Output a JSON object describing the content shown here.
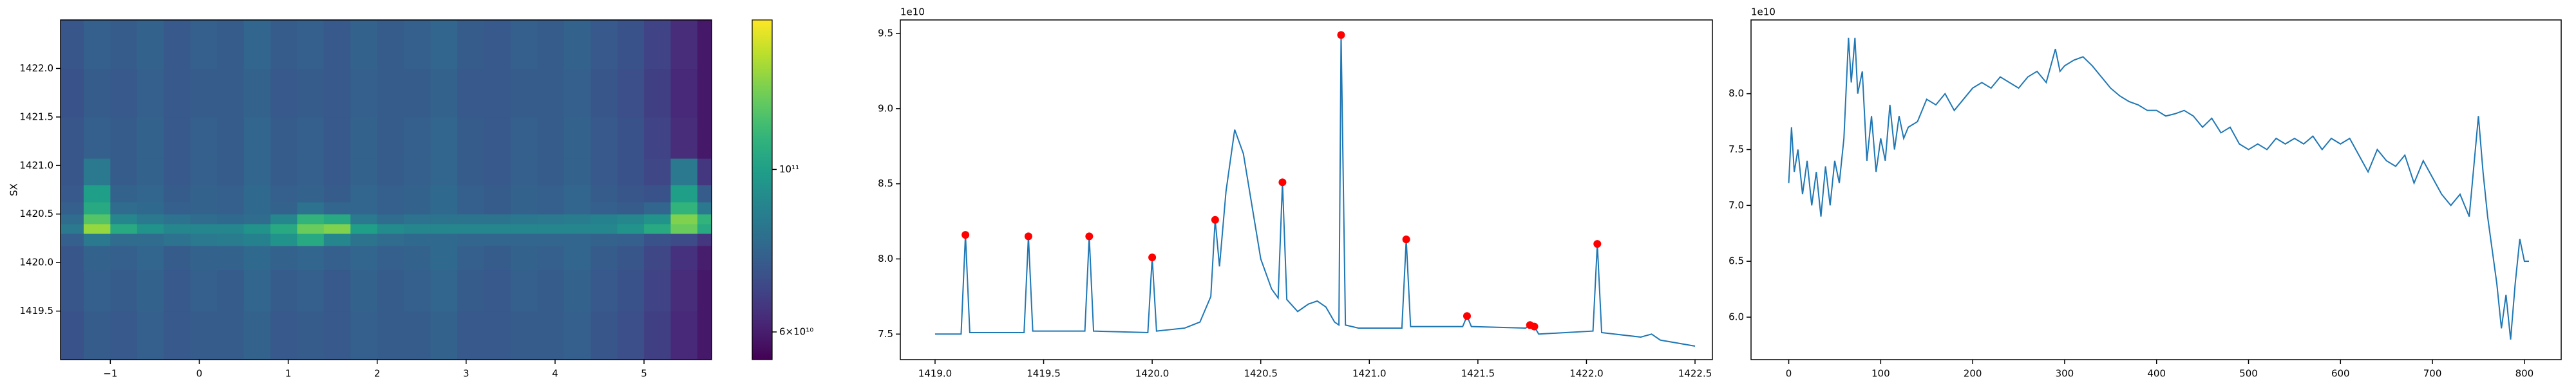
{
  "chart_data": [
    {
      "type": "heatmap",
      "x": [
        -1.45,
        -1.15,
        -0.85,
        -0.55,
        -0.25,
        0.05,
        0.35,
        0.65,
        0.95,
        1.25,
        1.55,
        1.85,
        2.15,
        2.45,
        2.75,
        3.05,
        3.35,
        3.65,
        3.95,
        4.25,
        4.55,
        4.85,
        5.15,
        5.45,
        5.75
      ],
      "y": [
        1419.25,
        1419.75,
        1420.1,
        1420.25,
        1420.35,
        1420.45,
        1420.55,
        1420.7,
        1420.9,
        1421.25,
        1421.75,
        1422.25
      ],
      "z": [
        [
          72000000000.0,
          75000000000.0,
          74000000000.0,
          76000000000.0,
          74000000000.0,
          75000000000.0,
          75000000000.0,
          77000000000.0,
          74000000000.0,
          75000000000.0,
          74000000000.0,
          76000000000.0,
          75000000000.0,
          75000000000.0,
          77000000000.0,
          74000000000.0,
          74000000000.0,
          75000000000.0,
          75000000000.0,
          76000000000.0,
          73000000000.0,
          71000000000.0,
          67000000000.0,
          62000000000.0,
          59000000000.0
        ],
        [
          73000000000.0,
          76000000000.0,
          75000000000.0,
          77000000000.0,
          74000000000.0,
          76000000000.0,
          75000000000.0,
          78000000000.0,
          75000000000.0,
          76000000000.0,
          74000000000.0,
          77000000000.0,
          75000000000.0,
          76000000000.0,
          78000000000.0,
          75000000000.0,
          74000000000.0,
          76000000000.0,
          75000000000.0,
          77000000000.0,
          74000000000.0,
          72000000000.0,
          68000000000.0,
          63000000000.0,
          59000000000.0
        ],
        [
          73000000000.0,
          77000000000.0,
          76000000000.0,
          78000000000.0,
          75000000000.0,
          77000000000.0,
          77000000000.0,
          79000000000.0,
          77000000000.0,
          78000000000.0,
          76000000000.0,
          78000000000.0,
          76000000000.0,
          77000000000.0,
          79000000000.0,
          76000000000.0,
          75000000000.0,
          77000000000.0,
          76000000000.0,
          78000000000.0,
          75000000000.0,
          73000000000.0,
          69000000000.0,
          64000000000.0,
          60000000000.0
        ],
        [
          76000000000.0,
          85000000000.0,
          80000000000.0,
          80000000000.0,
          82000000000.0,
          85000000000.0,
          86000000000.0,
          88000000000.0,
          95000000000.0,
          105000000000.0,
          90000000000.0,
          83000000000.0,
          80000000000.0,
          79000000000.0,
          79000000000.0,
          78000000000.0,
          78000000000.0,
          78000000000.0,
          78000000000.0,
          78000000000.0,
          77000000000.0,
          76000000000.0,
          72000000000.0,
          70000000000.0,
          65000000000.0
        ],
        [
          85000000000.0,
          135000000000.0,
          105000000000.0,
          95000000000.0,
          90000000000.0,
          90000000000.0,
          90000000000.0,
          95000000000.0,
          105000000000.0,
          125000000000.0,
          130000000000.0,
          100000000000.0,
          92000000000.0,
          90000000000.0,
          90000000000.0,
          90000000000.0,
          90000000000.0,
          90000000000.0,
          90000000000.0,
          90000000000.0,
          90000000000.0,
          95000000000.0,
          105000000000.0,
          125000000000.0,
          105000000000.0
        ],
        [
          80000000000.0,
          120000000000.0,
          90000000000.0,
          85000000000.0,
          82000000000.0,
          80000000000.0,
          79000000000.0,
          80000000000.0,
          90000000000.0,
          110000000000.0,
          105000000000.0,
          85000000000.0,
          80000000000.0,
          82000000000.0,
          83000000000.0,
          83000000000.0,
          83000000000.0,
          84000000000.0,
          85000000000.0,
          86000000000.0,
          88000000000.0,
          90000000000.0,
          95000000000.0,
          130000000000.0,
          110000000000.0
        ],
        [
          76000000000.0,
          105000000000.0,
          80000000000.0,
          79000000000.0,
          76000000000.0,
          77000000000.0,
          76000000000.0,
          79000000000.0,
          77000000000.0,
          82000000000.0,
          78000000000.0,
          78000000000.0,
          76000000000.0,
          77000000000.0,
          79000000000.0,
          76000000000.0,
          75000000000.0,
          77000000000.0,
          76000000000.0,
          78000000000.0,
          76000000000.0,
          75000000000.0,
          78000000000.0,
          110000000000.0,
          85000000000.0
        ],
        [
          74000000000.0,
          100000000000.0,
          77000000000.0,
          78000000000.0,
          75000000000.0,
          77000000000.0,
          76000000000.0,
          79000000000.0,
          76000000000.0,
          77000000000.0,
          75000000000.0,
          78000000000.0,
          76000000000.0,
          77000000000.0,
          79000000000.0,
          76000000000.0,
          75000000000.0,
          77000000000.0,
          76000000000.0,
          78000000000.0,
          75000000000.0,
          73000000000.0,
          72000000000.0,
          100000000000.0,
          75000000000.0
        ],
        [
          73000000000.0,
          85000000000.0,
          75000000000.0,
          77000000000.0,
          74000000000.0,
          76000000000.0,
          75000000000.0,
          78000000000.0,
          75000000000.0,
          76000000000.0,
          74000000000.0,
          77000000000.0,
          75000000000.0,
          76000000000.0,
          78000000000.0,
          75000000000.0,
          74000000000.0,
          76000000000.0,
          75000000000.0,
          77000000000.0,
          74000000000.0,
          72000000000.0,
          69000000000.0,
          85000000000.0,
          65000000000.0
        ],
        [
          73000000000.0,
          76000000000.0,
          75000000000.0,
          77000000000.0,
          74000000000.0,
          76000000000.0,
          75000000000.0,
          78000000000.0,
          75000000000.0,
          76000000000.0,
          74000000000.0,
          77000000000.0,
          75000000000.0,
          76000000000.0,
          78000000000.0,
          75000000000.0,
          74000000000.0,
          76000000000.0,
          75000000000.0,
          77000000000.0,
          74000000000.0,
          72000000000.0,
          68000000000.0,
          63000000000.0,
          59000000000.0
        ],
        [
          72000000000.0,
          75000000000.0,
          74000000000.0,
          76000000000.0,
          74000000000.0,
          75000000000.0,
          75000000000.0,
          77000000000.0,
          74000000000.0,
          75000000000.0,
          74000000000.0,
          76000000000.0,
          75000000000.0,
          75000000000.0,
          77000000000.0,
          74000000000.0,
          74000000000.0,
          75000000000.0,
          75000000000.0,
          76000000000.0,
          73000000000.0,
          71000000000.0,
          67000000000.0,
          62000000000.0,
          59000000000.0
        ],
        [
          73000000000.0,
          76000000000.0,
          75000000000.0,
          77000000000.0,
          74000000000.0,
          76000000000.0,
          75000000000.0,
          78000000000.0,
          75000000000.0,
          76000000000.0,
          74000000000.0,
          77000000000.0,
          75000000000.0,
          76000000000.0,
          78000000000.0,
          75000000000.0,
          74000000000.0,
          76000000000.0,
          75000000000.0,
          77000000000.0,
          74000000000.0,
          72000000000.0,
          68000000000.0,
          63000000000.0,
          59000000000.0
        ]
      ],
      "xlim": [
        -1.56,
        5.76
      ],
      "ylim": [
        1419.0,
        1422.5
      ],
      "xticks": [
        {
          "value": -1,
          "label": "−1"
        },
        0,
        1,
        2,
        3,
        4,
        5
      ],
      "yticks": [
        1419.5,
        {
          "value": 1420,
          "label": "1420.0"
        },
        1420.5,
        {
          "value": 1421,
          "label": "1421.0"
        },
        1421.5,
        {
          "value": 1422,
          "label": "1422.0"
        }
      ],
      "ylabel": "SX",
      "cmap": "viridis",
      "colorbar": {
        "log": true,
        "lim": [
          55000000000.0,
          160000000000.0
        ],
        "ticks": [
          {
            "value": 60000000000.0,
            "label": "6×10¹⁰"
          },
          {
            "value": 100000000000.0,
            "label": "10¹¹"
          }
        ]
      }
    },
    {
      "type": "line",
      "xlim": [
        1418.84,
        1422.58
      ],
      "ylim": [
        7.33,
        9.59
      ],
      "xticks": [
        {
          "value": 1419,
          "label": "1419.0"
        },
        1419.5,
        {
          "value": 1420,
          "label": "1420.0"
        },
        1420.5,
        {
          "value": 1421,
          "label": "1421.0"
        },
        1421.5,
        {
          "value": 1422,
          "label": "1422.0"
        },
        1422.5
      ],
      "yticks": [
        7.5,
        {
          "value": 8,
          "label": "8.0"
        },
        8.5,
        {
          "value": 9,
          "label": "9.0"
        },
        9.5
      ],
      "offset_text": "1e10",
      "series": [
        {
          "color": "#1f77b4",
          "x": [
            1419.0,
            1419.12,
            1419.14,
            1419.16,
            1419.41,
            1419.43,
            1419.45,
            1419.69,
            1419.71,
            1419.73,
            1419.98,
            1420.0,
            1420.02,
            1420.15,
            1420.22,
            1420.27,
            1420.29,
            1420.31,
            1420.34,
            1420.38,
            1420.42,
            1420.46,
            1420.5,
            1420.55,
            1420.58,
            1420.6,
            1420.62,
            1420.67,
            1420.72,
            1420.76,
            1420.8,
            1420.84,
            1420.86,
            1420.87,
            1420.89,
            1420.95,
            1421.1,
            1421.15,
            1421.17,
            1421.19,
            1421.43,
            1421.45,
            1421.47,
            1421.72,
            1421.74,
            1421.76,
            1421.78,
            1422.03,
            1422.05,
            1422.07,
            1422.25,
            1422.3,
            1422.34,
            1422.5
          ],
          "values": [
            7.5,
            7.5,
            8.16,
            7.51,
            7.51,
            8.15,
            7.52,
            7.52,
            8.15,
            7.52,
            7.51,
            8.01,
            7.52,
            7.54,
            7.58,
            7.75,
            8.26,
            7.95,
            8.45,
            8.86,
            8.7,
            8.35,
            8.0,
            7.8,
            7.74,
            8.51,
            7.73,
            7.65,
            7.7,
            7.72,
            7.68,
            7.58,
            7.56,
            9.49,
            7.56,
            7.54,
            7.54,
            7.54,
            8.13,
            7.55,
            7.55,
            7.62,
            7.55,
            7.54,
            7.56,
            7.55,
            7.5,
            7.52,
            8.1,
            7.51,
            7.48,
            7.5,
            7.46,
            7.42
          ]
        },
        {
          "color": "red",
          "marker": "o",
          "linestyle": "none",
          "x": [
            1419.14,
            1419.43,
            1419.71,
            1420.0,
            1420.29,
            1420.6,
            1420.87,
            1421.17,
            1421.45,
            1421.74,
            1421.76,
            1422.05
          ],
          "values": [
            8.16,
            8.15,
            8.15,
            8.01,
            8.26,
            8.51,
            9.49,
            8.13,
            7.62,
            7.56,
            7.55,
            8.1
          ]
        }
      ]
    },
    {
      "type": "line",
      "xlim": [
        -41,
        840
      ],
      "ylim": [
        5.62,
        8.66
      ],
      "xticks": [
        0,
        100,
        200,
        300,
        400,
        500,
        600,
        700,
        800
      ],
      "yticks": [
        {
          "value": 6,
          "label": "6.0"
        },
        6.5,
        {
          "value": 7,
          "label": "7.0"
        },
        7.5,
        {
          "value": 8,
          "label": "8.0"
        }
      ],
      "offset_text": "1e10",
      "series": [
        {
          "color": "#1f77b4",
          "x": [
            0,
            3,
            6,
            10,
            15,
            20,
            25,
            30,
            35,
            40,
            45,
            50,
            55,
            60,
            65,
            68,
            72,
            75,
            80,
            85,
            90,
            95,
            100,
            105,
            110,
            115,
            120,
            125,
            130,
            140,
            150,
            160,
            170,
            180,
            190,
            200,
            210,
            220,
            230,
            240,
            250,
            260,
            270,
            280,
            290,
            295,
            300,
            310,
            320,
            330,
            340,
            350,
            360,
            370,
            380,
            390,
            400,
            410,
            420,
            430,
            440,
            450,
            460,
            470,
            480,
            490,
            500,
            510,
            520,
            530,
            540,
            550,
            560,
            570,
            580,
            590,
            600,
            610,
            620,
            630,
            640,
            650,
            660,
            670,
            680,
            690,
            700,
            710,
            720,
            730,
            740,
            750,
            755,
            760,
            765,
            770,
            775,
            780,
            785,
            790,
            795,
            800,
            805
          ],
          "values": [
            7.2,
            7.7,
            7.3,
            7.5,
            7.1,
            7.4,
            7.0,
            7.3,
            6.9,
            7.35,
            7.0,
            7.4,
            7.2,
            7.6,
            8.5,
            8.1,
            8.5,
            8.0,
            8.2,
            7.4,
            7.8,
            7.3,
            7.6,
            7.4,
            7.9,
            7.5,
            7.8,
            7.6,
            7.7,
            7.75,
            7.95,
            7.9,
            8.0,
            7.85,
            7.95,
            8.05,
            8.1,
            8.05,
            8.15,
            8.1,
            8.05,
            8.15,
            8.2,
            8.1,
            8.4,
            8.2,
            8.25,
            8.3,
            8.33,
            8.25,
            8.15,
            8.05,
            7.98,
            7.93,
            7.9,
            7.85,
            7.85,
            7.8,
            7.82,
            7.85,
            7.8,
            7.7,
            7.78,
            7.65,
            7.7,
            7.55,
            7.5,
            7.55,
            7.5,
            7.6,
            7.55,
            7.6,
            7.55,
            7.62,
            7.5,
            7.6,
            7.55,
            7.6,
            7.45,
            7.3,
            7.5,
            7.4,
            7.35,
            7.45,
            7.2,
            7.4,
            7.25,
            7.1,
            7.0,
            7.1,
            6.9,
            7.8,
            7.3,
            6.9,
            6.6,
            6.3,
            5.9,
            6.2,
            5.8,
            6.3,
            6.7,
            6.5,
            6.5
          ]
        }
      ]
    }
  ]
}
